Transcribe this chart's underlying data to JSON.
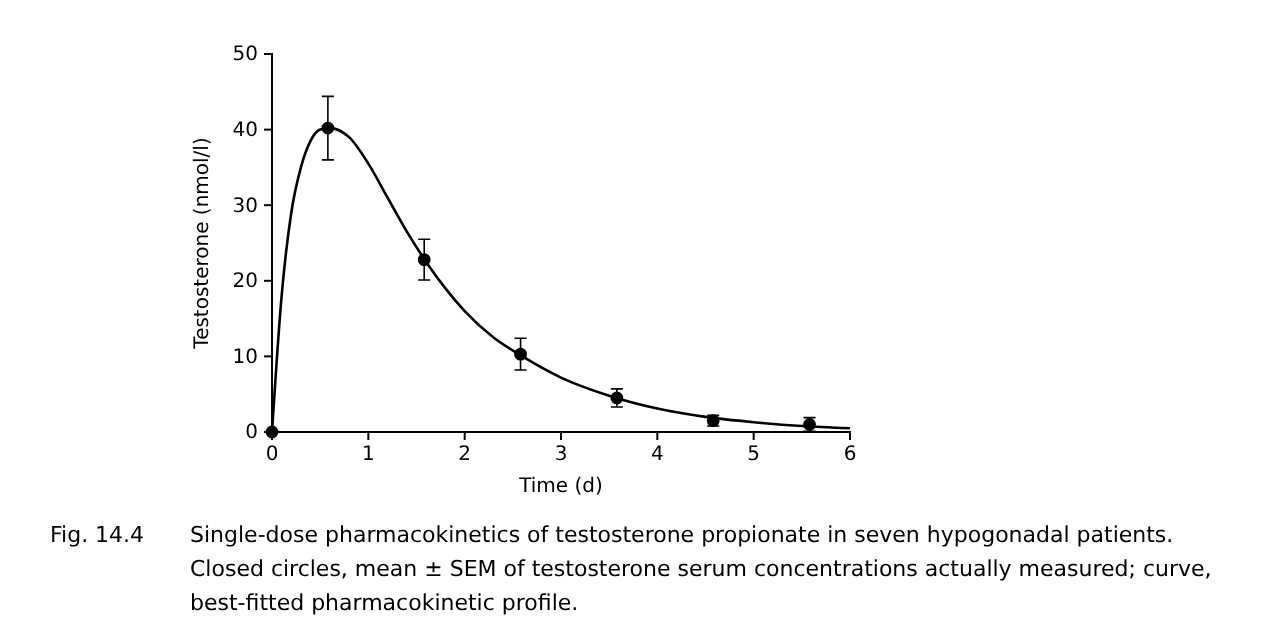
{
  "chart_data": {
    "type": "scatter",
    "xlabel": "Time (d)",
    "ylabel": "Testosterone (nmol/l)",
    "xlim": [
      0,
      6
    ],
    "ylim": [
      0,
      50
    ],
    "xticks": [
      0,
      1,
      2,
      3,
      4,
      5,
      6
    ],
    "yticks": [
      0,
      10,
      20,
      30,
      40,
      50
    ],
    "grid": false,
    "series": [
      {
        "color": "#000000",
        "marker": "circle",
        "x": [
          0,
          0.58,
          1.58,
          2.58,
          3.58,
          4.58,
          5.58
        ],
        "values": [
          0,
          40.2,
          22.8,
          10.3,
          4.5,
          1.5,
          1.0
        ],
        "errors": [
          null,
          4.2,
          2.7,
          2.1,
          1.2,
          0.7,
          0.9
        ]
      },
      {
        "type": "line",
        "color": "#000000",
        "marker": "none",
        "line_style": "solid",
        "x": [
          0,
          0.1,
          0.2,
          0.3,
          0.4,
          0.5,
          0.6,
          0.8,
          1.0,
          1.2,
          1.4,
          1.6,
          1.8,
          2.0,
          2.3,
          2.6,
          3.0,
          3.5,
          4.0,
          4.5,
          5.0,
          5.5,
          6.0
        ],
        "values": [
          0,
          18,
          29,
          35,
          38.5,
          40,
          40.2,
          39,
          35.5,
          31,
          26.5,
          22.5,
          19,
          16,
          12.5,
          10,
          7.2,
          4.8,
          3.1,
          2,
          1.3,
          0.8,
          0.5
        ]
      }
    ],
    "annotations": [
      "Fig. 14.4",
      "Single-dose pharmacokinetics of testosterone propionate in seven hypogonadal patients. Closed circles, mean ± SEM of testosterone serum concentrations actually measured; curve, best-fitted pharmacokinetic profile."
    ]
  }
}
